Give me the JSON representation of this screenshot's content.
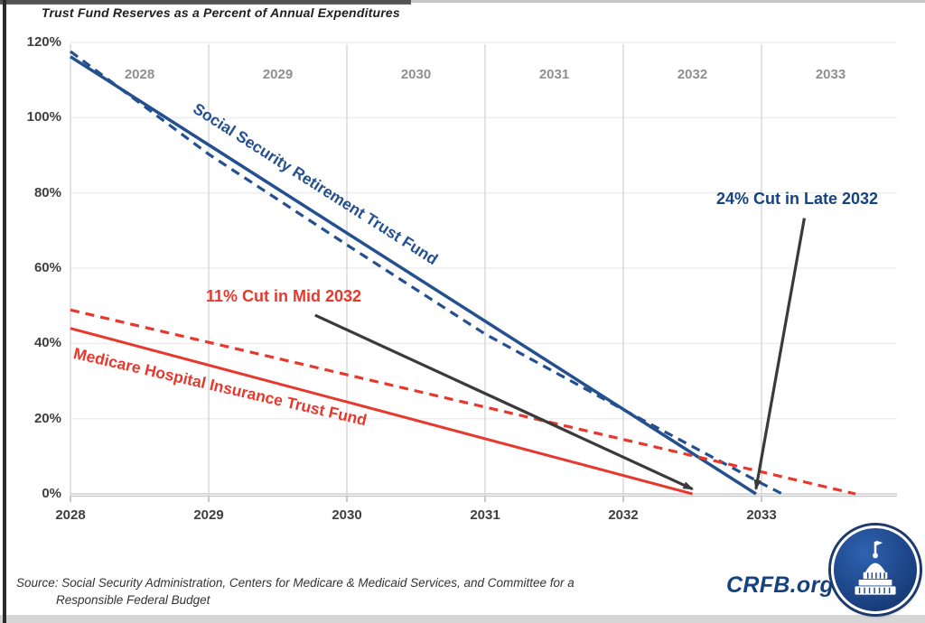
{
  "title": "Trust Fund Reserves as a Percent of Annual Expenditures",
  "source": {
    "line1": "Source: Social Security Administration, Centers for Medicare & Medicaid Services, and Committee for a",
    "line2": "Responsible Federal Budget"
  },
  "branding": {
    "site": "CRFB.org",
    "logo": "capitol-dome-icon"
  },
  "colors": {
    "blue_line": "#25508f",
    "red_line": "#e8382d",
    "arrow": "#3a3a3a",
    "navy_text": "#16437e",
    "grid_horizontal": "#ededed",
    "grid_vertical": "#d8d8d8",
    "axis_zero_line": "#cfcfcf",
    "axis_label_dark": "#3f3f3f",
    "axis_label_gray": "#909090"
  },
  "chart_data": {
    "type": "line",
    "title": "Trust Fund Reserves as a Percent of Annual Expenditures",
    "x_axis": {
      "top_labels": [
        "2028",
        "2029",
        "2030",
        "2031",
        "2032",
        "2033"
      ],
      "bottom_labels": [
        "2028",
        "2029",
        "2030",
        "2031",
        "2032",
        "2033"
      ],
      "grid_years": [
        2028,
        2029,
        2030,
        2031,
        2032,
        2033
      ],
      "range": [
        2028,
        2033.98
      ]
    },
    "y_axis": {
      "ticks": [
        120,
        100,
        80,
        60,
        40,
        20,
        0
      ],
      "tick_labels": [
        "120%",
        "100%",
        "80%",
        "60%",
        "40%",
        "20%",
        "0%"
      ],
      "range": [
        0,
        120
      ],
      "unit": "percent of annual expenditures"
    },
    "grid": true,
    "legend_position": "labels-on-lines",
    "series": [
      {
        "name": "Social Security Retirement Trust Fund (dashed projection)",
        "color": "#25508f",
        "style": "dashed",
        "width": 3.2,
        "points": [
          [
            2028,
            117.6
          ],
          [
            2029,
            90.3
          ],
          [
            2030,
            66.2
          ],
          [
            2031,
            42.5
          ],
          [
            2032,
            22.4
          ],
          [
            2033,
            2.8
          ],
          [
            2033.15,
            0
          ]
        ]
      },
      {
        "name": "Social Security Retirement Trust Fund (solid projection)",
        "color": "#25508f",
        "style": "solid",
        "width": 3.5,
        "points": [
          [
            2028,
            116.2
          ],
          [
            2032.96,
            0
          ]
        ]
      },
      {
        "name": "Medicare Hospital Insurance Trust Fund (dashed projection)",
        "color": "#e8382d",
        "style": "dashed",
        "width": 3.2,
        "points": [
          [
            2028,
            48.9
          ],
          [
            2033.68,
            0
          ]
        ]
      },
      {
        "name": "Medicare Hospital Insurance Trust Fund (solid projection)",
        "color": "#e8382d",
        "style": "solid",
        "width": 3,
        "points": [
          [
            2028,
            44
          ],
          [
            2032.5,
            0
          ]
        ]
      }
    ],
    "line_labels": [
      {
        "text": "Social Security Retirement Trust Fund",
        "color": "#25508f"
      },
      {
        "text": "Medicare Hospital Insurance Trust Fund",
        "color": "#e8382d"
      }
    ],
    "annotations": [
      {
        "text": "11% Cut in Mid 2032",
        "color": "#e8382d",
        "arrow_from": [
          2029.77,
          47.5
        ],
        "arrow_to": [
          2032.5,
          1.3
        ]
      },
      {
        "text": "24% Cut in Late 2032",
        "color": "#16437e",
        "arrow_from": [
          2033.31,
          73.3
        ],
        "arrow_to": [
          2032.96,
          1.3
        ]
      }
    ]
  }
}
